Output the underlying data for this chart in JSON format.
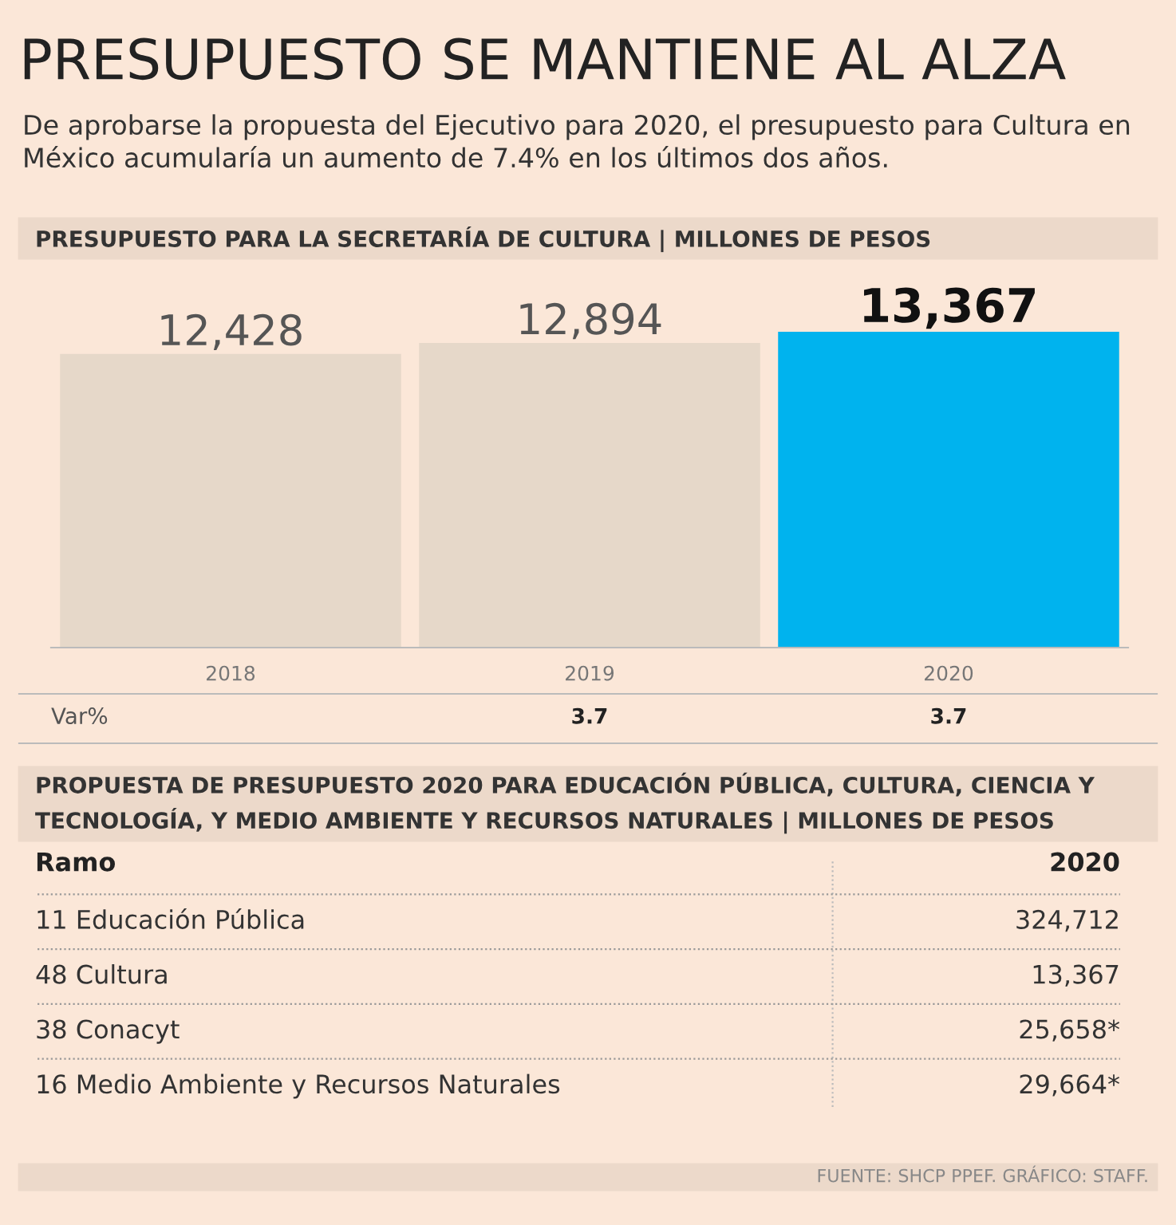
{
  "chart_data": [
    {
      "type": "bar",
      "title": "PRESUPUESTO SE MANTIENE AL ALZA",
      "subtitle": "De aprobarse la propuesta del Ejecutivo para 2020, el presupuesto para Cultura en México acumularía un aumento de 7.4% en los últimos dos años.",
      "annotations": [
        "PRESUPUESTO PARA LA SECRETARÍA DE CULTURA | MILLONES DE PESOS",
        "Var%",
        "3.7",
        "3.7"
      ],
      "categories": [
        "2018",
        "2019",
        "2020"
      ],
      "values": [
        12428,
        12894,
        13367
      ],
      "colors": [
        "#e6d8c9",
        "#e6d8c9",
        "#00b3ee"
      ],
      "value_labels": [
        "12,428",
        "12,894",
        "13,367"
      ],
      "tick_labels": "x",
      "grid": false,
      "legend": false
    },
    {
      "type": "other",
      "title": "PROPUESTA DE PRESUPUESTO 2020 PARA EDUCACIÓN PÚBLICA, CULTURA, CIENCIA Y TECNOLOGÍA, Y MEDIO AMBIENTE Y RECURSOS NATURALES | MILLONES DE PESOS",
      "ylabel": "Ramo",
      "xlabel": "2020",
      "categories": [
        "11 Educación Pública",
        "48 Cultura",
        "38 Conacyt",
        "16 Medio Ambiente y Recursos Naturales"
      ],
      "values": [
        324712,
        13367,
        25658,
        29664
      ],
      "value_labels": [
        "324,712",
        "13,367",
        "25,658*",
        "29,664*"
      ],
      "annotations": [
        "FUENTE: SHCP PPEF. GRÁFICO: STAFF."
      ]
    }
  ]
}
